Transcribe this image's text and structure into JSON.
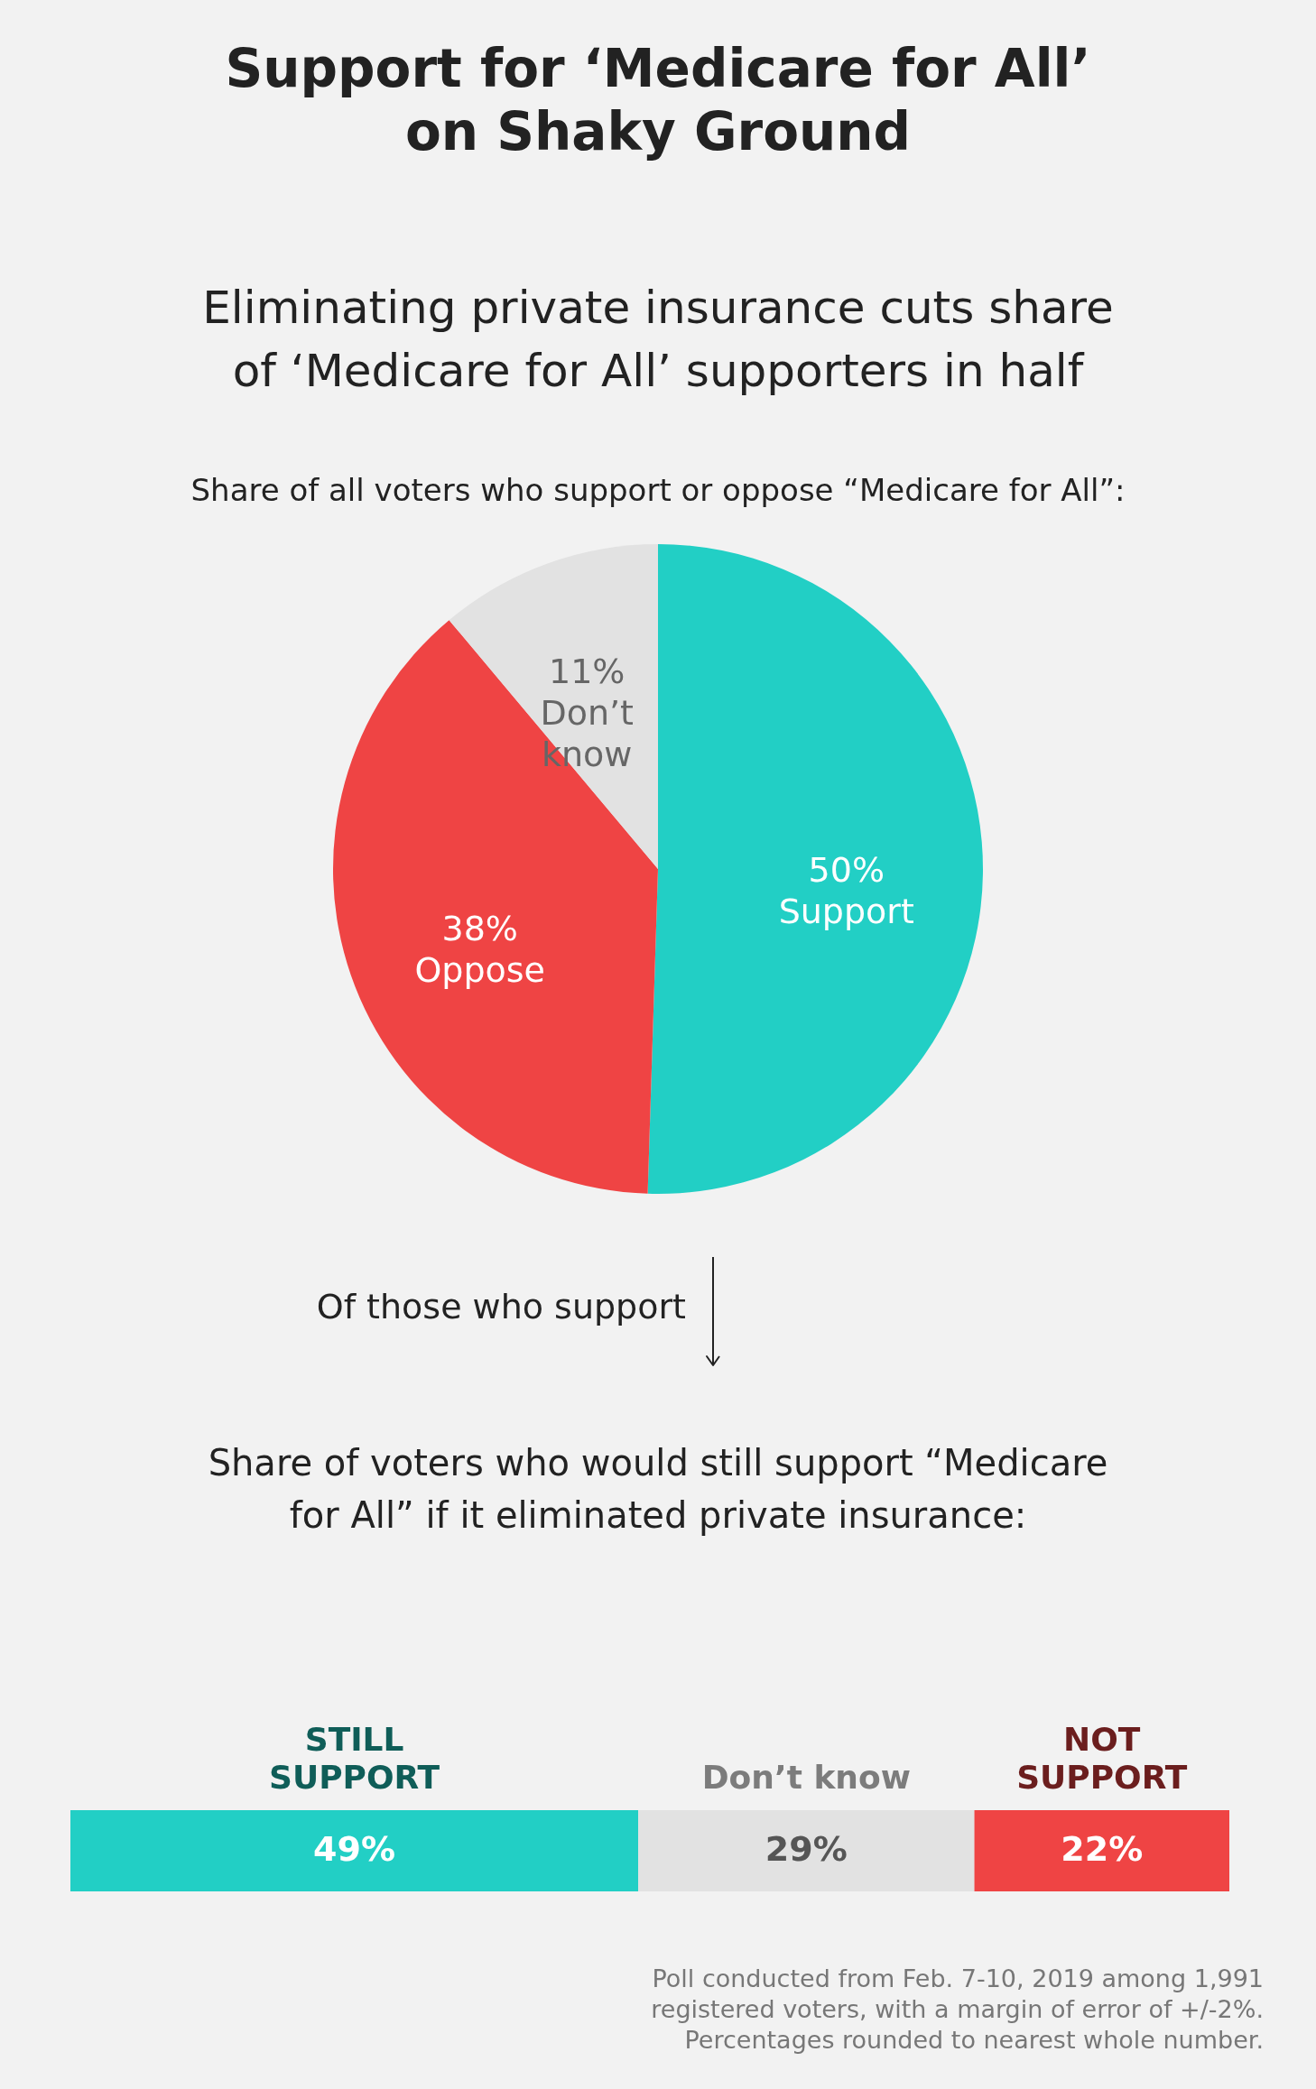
{
  "chart_data": [
    {
      "type": "pie",
      "title": "Support for ‘Medicare for All’ on Shaky Ground",
      "subtitle": "Eliminating private insurance cuts share of ‘Medicare for All’ supporters in half",
      "categories": [
        "Support",
        "Oppose",
        "Don’t know"
      ],
      "values": [
        50,
        38,
        11
      ],
      "value_labels": [
        "50%",
        "38%",
        "11%"
      ],
      "colors": [
        "#22cfc5",
        "#ef4444",
        "#e2e2e2"
      ],
      "annotations": [
        "Share of all voters who support or oppose “Medicare for All”:",
        "Of those who support"
      ]
    },
    {
      "type": "bar",
      "orientation": "horizontal",
      "stacked": true,
      "title": "Share of voters who would still support “Medicare for All” if it eliminated private insurance:",
      "categories": [
        null
      ],
      "series": [
        {
          "name": "STILL SUPPORT",
          "color": "#22cfc5",
          "values": [
            49
          ],
          "value_labels": [
            "49%"
          ]
        },
        {
          "name": "Don’t know",
          "color": "#e2e2e2",
          "values": [
            29
          ],
          "value_labels": [
            "29%"
          ]
        },
        {
          "name": "NOT SUPPORT",
          "color": "#ef4444",
          "values": [
            22
          ],
          "value_labels": [
            "22%"
          ]
        }
      ],
      "annotations": [
        "Poll conducted from Feb. 7-10, 2019 among 1,991 registered voters, with a margin of error of +/-2%. Percentages rounded to nearest whole number."
      ]
    }
  ]
}
